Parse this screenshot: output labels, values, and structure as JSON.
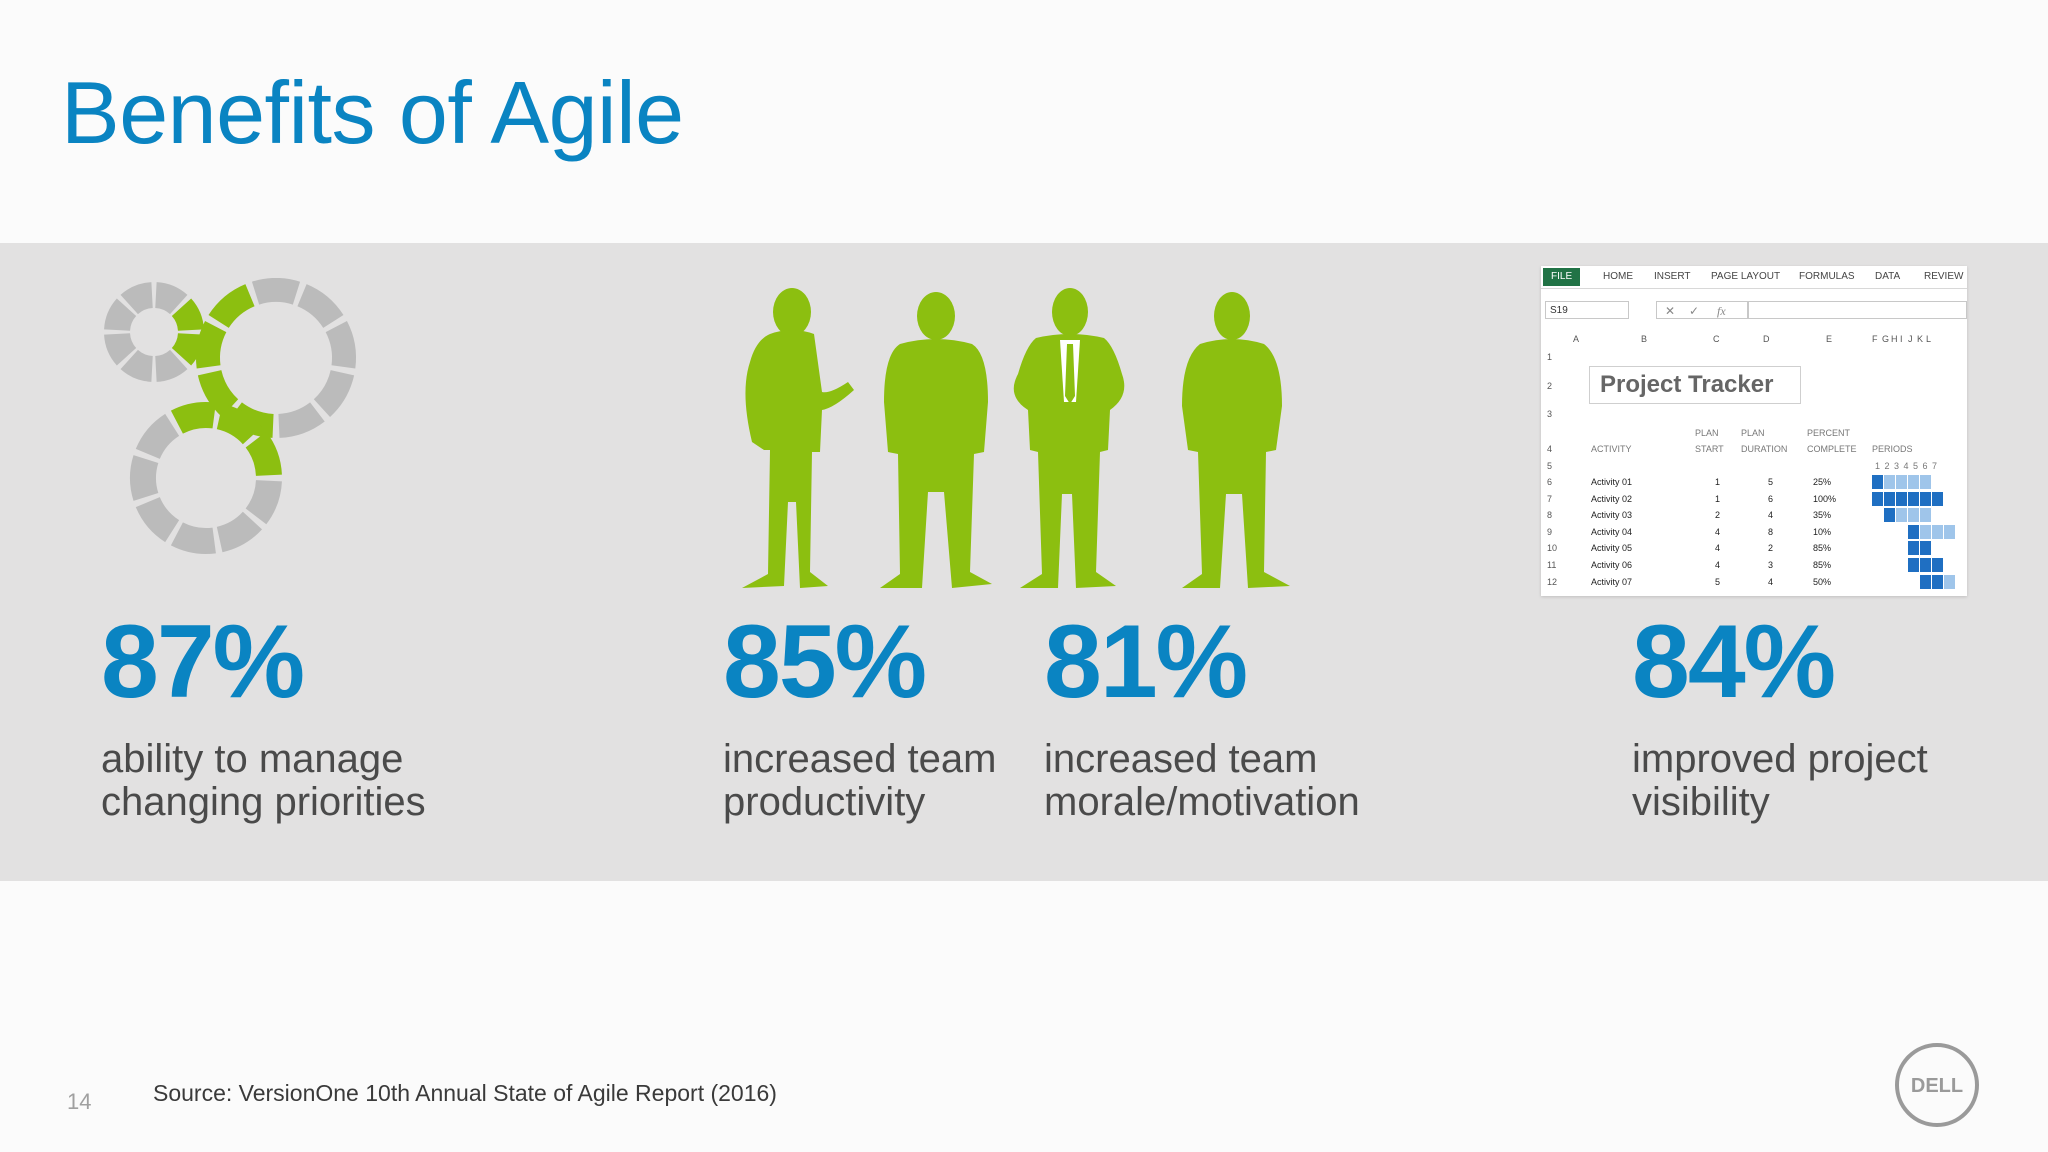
{
  "slide": {
    "title": "Benefits of Agile",
    "source": "Source: VersionOne 10th Annual State of Agile Report (2016)",
    "page_number": "14",
    "logo_text": "DELL",
    "colors": {
      "blue": "#0a84c2",
      "green": "#8cbf10",
      "gray": "#bbbbbb",
      "band": "#e2e1e1"
    }
  },
  "stats": [
    {
      "value": "87%",
      "line1": "ability to manage",
      "line2": "changing priorities"
    },
    {
      "value": "85%",
      "line1": "increased team",
      "line2": "productivity"
    },
    {
      "value": "81%",
      "line1": "increased team",
      "line2": "morale/motivation"
    },
    {
      "value": "84%",
      "line1": "improved project",
      "line2": "visibility"
    }
  ],
  "illustrations": {
    "gears_icon": "gears-icon",
    "people_icon": "silhouettes-icon",
    "spreadsheet": {
      "ribbon_tabs": [
        "FILE",
        "HOME",
        "INSERT",
        "PAGE LAYOUT",
        "FORMULAS",
        "DATA",
        "REVIEW"
      ],
      "name_box": "S19",
      "fx_label": "fx",
      "columns": [
        "A",
        "B",
        "C",
        "D",
        "E",
        "F",
        "G",
        "H",
        "I",
        "J",
        "K",
        "L"
      ],
      "row_numbers": [
        "1",
        "2",
        "3",
        "4",
        "5",
        "6",
        "7",
        "8",
        "9",
        "10",
        "11",
        "12"
      ],
      "tracker_title": "Project Tracker",
      "headers": {
        "activity": "ACTIVITY",
        "plan_start_1": "PLAN",
        "plan_start_2": "START",
        "plan_duration_1": "PLAN",
        "plan_duration_2": "DURATION",
        "percent_1": "PERCENT",
        "percent_2": "COMPLETE",
        "periods": "PERIODS",
        "period_numbers": "1 2 3 4 5 6 7"
      },
      "activities": [
        {
          "name": "Activity 01",
          "start": "1",
          "duration": "5",
          "percent": "25%"
        },
        {
          "name": "Activity 02",
          "start": "1",
          "duration": "6",
          "percent": "100%"
        },
        {
          "name": "Activity 03",
          "start": "2",
          "duration": "4",
          "percent": "35%"
        },
        {
          "name": "Activity 04",
          "start": "4",
          "duration": "8",
          "percent": "10%"
        },
        {
          "name": "Activity 05",
          "start": "4",
          "duration": "2",
          "percent": "85%"
        },
        {
          "name": "Activity 06",
          "start": "4",
          "duration": "3",
          "percent": "85%"
        },
        {
          "name": "Activity 07",
          "start": "5",
          "duration": "4",
          "percent": "50%"
        }
      ]
    }
  }
}
